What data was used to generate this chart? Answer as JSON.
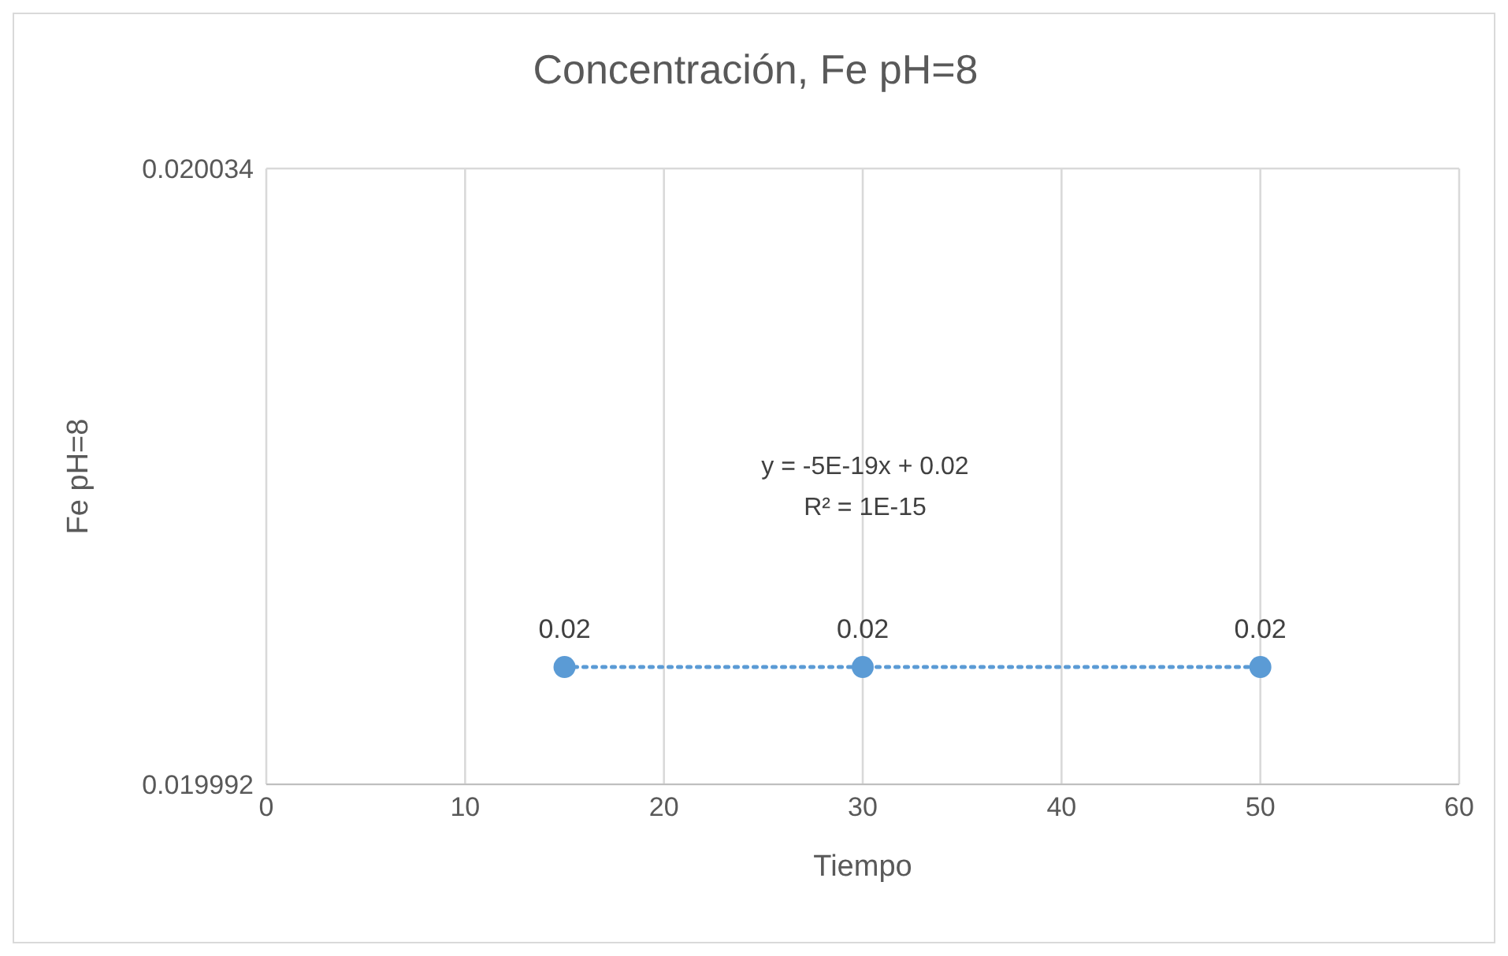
{
  "chart_data": {
    "type": "scatter",
    "title": "Concentración, Fe pH=8",
    "xlabel": "Tiempo",
    "ylabel": "Fe pH=8",
    "xlim": [
      0,
      60
    ],
    "xticks": [
      0,
      10,
      20,
      30,
      40,
      50,
      60
    ],
    "ylim": [
      0.019992,
      0.020034
    ],
    "yticks": [
      0.019992,
      0.020034
    ],
    "grid": true,
    "annotations": [
      "y = -5E-19x + 0.02",
      "R² = 1E-15"
    ],
    "series": [
      {
        "color": "#5b9bd5",
        "marker": "circle",
        "x": [
          15,
          30,
          50
        ],
        "values": [
          0.02,
          0.02,
          0.02
        ],
        "value_labels": [
          "0.02",
          "0.02",
          "0.02"
        ]
      },
      {
        "type": "line",
        "color": "#5b9bd5",
        "marker": "none",
        "line_style": "dotted",
        "x": [
          15,
          50
        ],
        "values": [
          0.02,
          0.02
        ]
      }
    ]
  }
}
